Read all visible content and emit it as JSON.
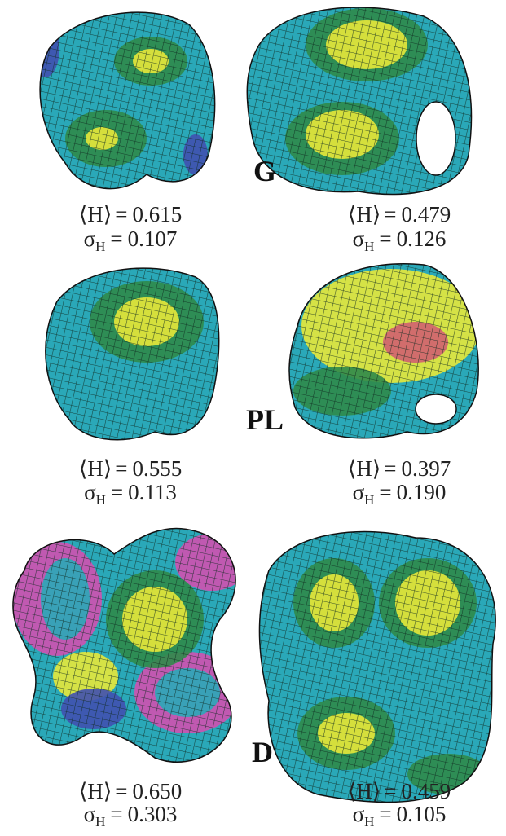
{
  "symbols": {
    "mean": "⟨H⟩",
    "sigma": "σ",
    "sigma_subscript": "H",
    "equals": "="
  },
  "rows": [
    {
      "label": "G",
      "panels": [
        {
          "mean": "0.615",
          "sigma": "0.107"
        },
        {
          "mean": "0.479",
          "sigma": "0.126"
        }
      ]
    },
    {
      "label": "PL",
      "panels": [
        {
          "mean": "0.555",
          "sigma": "0.113"
        },
        {
          "mean": "0.397",
          "sigma": "0.190"
        }
      ]
    },
    {
      "label": "D",
      "panels": [
        {
          "mean": "0.650",
          "sigma": "0.303"
        },
        {
          "mean": "0.459",
          "sigma": "0.105"
        }
      ]
    }
  ]
}
